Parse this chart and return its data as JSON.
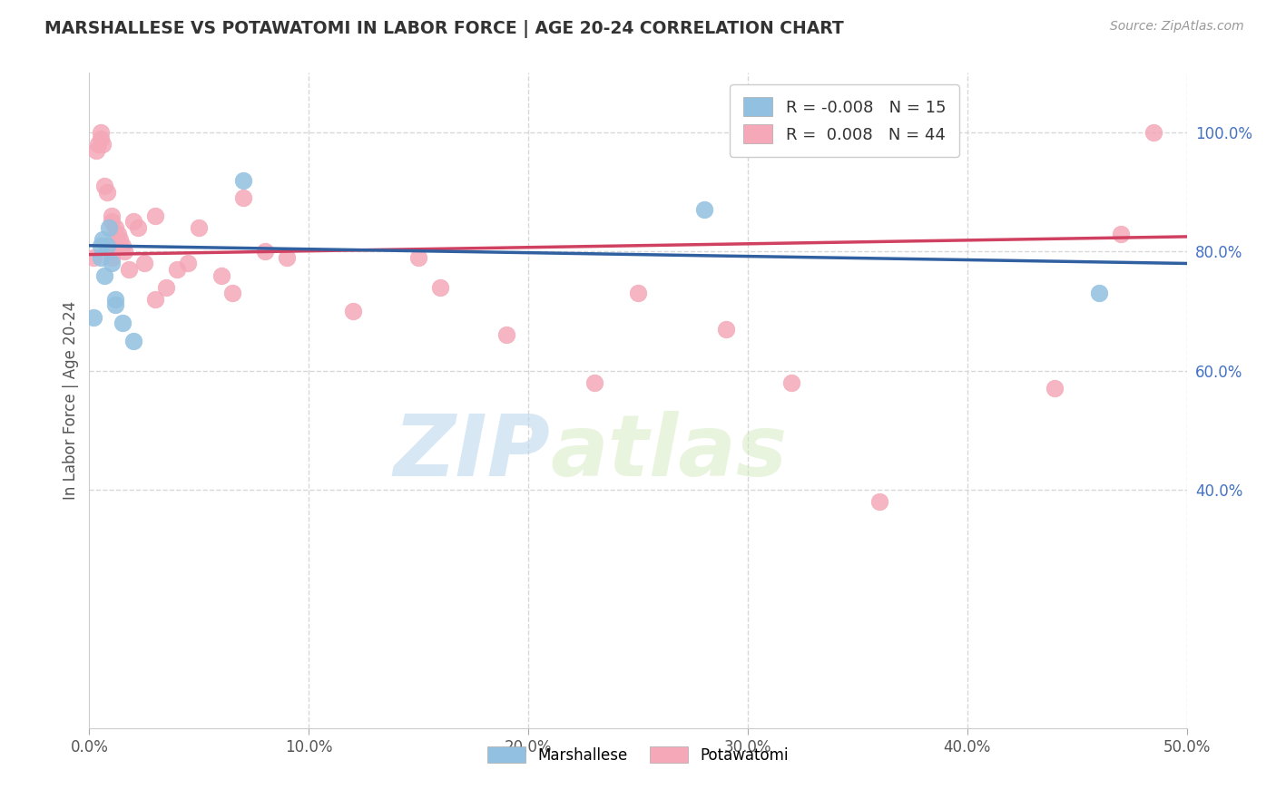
{
  "title": "MARSHALLESE VS POTAWATOMI IN LABOR FORCE | AGE 20-24 CORRELATION CHART",
  "source": "Source: ZipAtlas.com",
  "ylabel": "In Labor Force | Age 20-24",
  "xlim": [
    0.0,
    0.5
  ],
  "ylim": [
    0.0,
    1.1
  ],
  "xticks": [
    0.0,
    0.1,
    0.2,
    0.3,
    0.4,
    0.5
  ],
  "yticks_right": [
    0.4,
    0.6,
    0.8,
    1.0
  ],
  "ytick_right_labels": [
    "40.0%",
    "60.0%",
    "80.0%",
    "100.0%"
  ],
  "xtick_labels": [
    "0.0%",
    "10.0%",
    "20.0%",
    "30.0%",
    "40.0%",
    "50.0%"
  ],
  "grid_color": "#d8d8d8",
  "background_color": "#ffffff",
  "watermark_zip": "ZIP",
  "watermark_atlas": "atlas",
  "legend_R_blue": "-0.008",
  "legend_N_blue": "15",
  "legend_R_pink": "0.008",
  "legend_N_pink": "44",
  "blue_color": "#92c0e0",
  "pink_color": "#f4a8b8",
  "trend_blue": "#3060a0",
  "trend_pink": "#d04060",
  "blue_scatter_x": [
    0.002,
    0.005,
    0.005,
    0.006,
    0.007,
    0.008,
    0.009,
    0.01,
    0.012,
    0.012,
    0.015,
    0.02,
    0.28,
    0.46,
    0.07
  ],
  "blue_scatter_y": [
    0.69,
    0.81,
    0.79,
    0.82,
    0.76,
    0.81,
    0.84,
    0.78,
    0.72,
    0.71,
    0.68,
    0.65,
    0.87,
    0.73,
    0.92
  ],
  "pink_scatter_x": [
    0.002,
    0.003,
    0.004,
    0.005,
    0.005,
    0.006,
    0.007,
    0.008,
    0.01,
    0.01,
    0.01,
    0.01,
    0.012,
    0.013,
    0.014,
    0.015,
    0.016,
    0.018,
    0.02,
    0.022,
    0.025,
    0.03,
    0.03,
    0.035,
    0.04,
    0.045,
    0.05,
    0.06,
    0.065,
    0.07,
    0.08,
    0.09,
    0.12,
    0.15,
    0.16,
    0.19,
    0.23,
    0.25,
    0.29,
    0.32,
    0.36,
    0.44,
    0.47,
    0.485
  ],
  "pink_scatter_y": [
    0.79,
    0.97,
    0.98,
    0.99,
    1.0,
    0.98,
    0.91,
    0.9,
    0.86,
    0.85,
    0.8,
    0.79,
    0.84,
    0.83,
    0.82,
    0.81,
    0.8,
    0.77,
    0.85,
    0.84,
    0.78,
    0.86,
    0.72,
    0.74,
    0.77,
    0.78,
    0.84,
    0.76,
    0.73,
    0.89,
    0.8,
    0.79,
    0.7,
    0.79,
    0.74,
    0.66,
    0.58,
    0.73,
    0.67,
    0.58,
    0.38,
    0.57,
    0.83,
    1.0
  ]
}
